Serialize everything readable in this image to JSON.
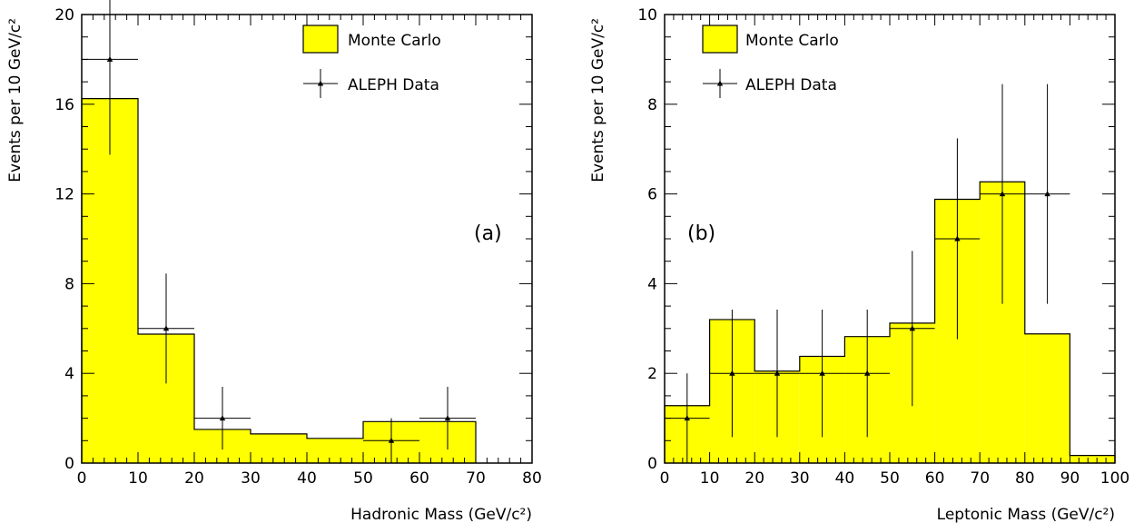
{
  "colors": {
    "fill": "#ffff00",
    "stroke": "#000000",
    "background": "#ffffff"
  },
  "chart_data": [
    {
      "type": "bar",
      "panel_label": "(a)",
      "xlabel": "Hadronic Mass (GeV/c²)",
      "ylabel": "Events per 10 GeV/c²",
      "xlim": [
        0,
        80
      ],
      "ylim": [
        0,
        20
      ],
      "xticks": [
        0,
        10,
        20,
        30,
        40,
        50,
        60,
        70,
        80
      ],
      "yticks": [
        0,
        4,
        8,
        12,
        16,
        20
      ],
      "legend_position": "top-right",
      "series": [
        {
          "name": "Monte Carlo",
          "kind": "histogram",
          "bin_edges": [
            0,
            10,
            20,
            30,
            40,
            50,
            60,
            70
          ],
          "values": [
            16.25,
            5.75,
            1.5,
            1.3,
            1.1,
            1.85,
            1.85
          ]
        },
        {
          "name": "ALEPH Data",
          "kind": "points",
          "x": [
            5,
            15,
            25,
            55,
            65
          ],
          "y": [
            18,
            6,
            2,
            1,
            2
          ],
          "x_half_width": 5,
          "yerr_low": [
            4.25,
            2.45,
            1.4,
            1.0,
            1.4
          ],
          "yerr_high": [
            4.25,
            2.45,
            1.4,
            1.0,
            1.4
          ]
        }
      ]
    },
    {
      "type": "bar",
      "panel_label": "(b)",
      "xlabel": "Leptonic Mass (GeV/c²)",
      "ylabel": "Events per 10 GeV/c²",
      "xlim": [
        0,
        100
      ],
      "ylim": [
        0,
        10
      ],
      "xticks": [
        0,
        10,
        20,
        30,
        40,
        50,
        60,
        70,
        80,
        90,
        100
      ],
      "yticks": [
        0,
        2,
        4,
        6,
        8,
        10
      ],
      "legend_position": "top-left",
      "series": [
        {
          "name": "Monte Carlo",
          "kind": "histogram",
          "bin_edges": [
            0,
            10,
            20,
            30,
            40,
            50,
            60,
            70,
            80,
            90,
            100
          ],
          "values": [
            1.28,
            3.2,
            2.05,
            2.38,
            2.82,
            3.12,
            5.88,
            6.27,
            2.88,
            0.17
          ]
        },
        {
          "name": "ALEPH Data",
          "kind": "points",
          "x": [
            5,
            15,
            25,
            35,
            45,
            55,
            65,
            75,
            85
          ],
          "y": [
            1,
            2,
            2,
            2,
            2,
            3,
            5,
            6,
            6
          ],
          "x_half_width": 5,
          "yerr_low": [
            1.0,
            1.42,
            1.42,
            1.42,
            1.42,
            1.73,
            2.24,
            2.45,
            2.45
          ],
          "yerr_high": [
            1.0,
            1.42,
            1.42,
            1.42,
            1.42,
            1.73,
            2.24,
            2.45,
            2.45
          ]
        }
      ]
    }
  ]
}
